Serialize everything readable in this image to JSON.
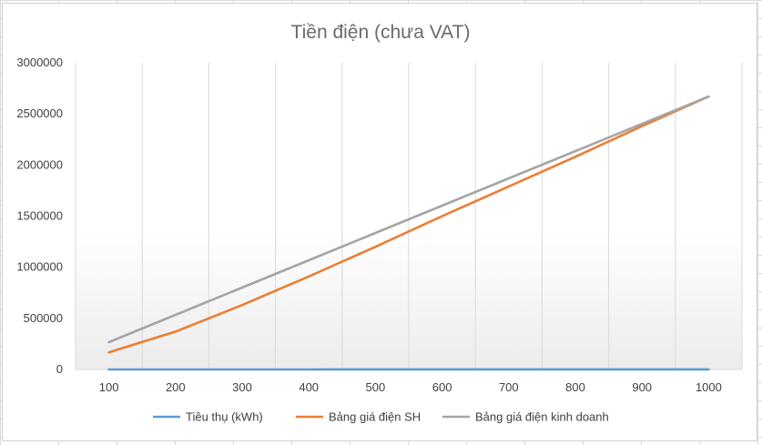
{
  "chart_data": {
    "type": "line",
    "title": "Tiền điện (chưa VAT)",
    "xlabel": "",
    "ylabel": "",
    "categories": [
      "100",
      "200",
      "300",
      "400",
      "500",
      "600",
      "700",
      "800",
      "900",
      "1000"
    ],
    "ylim": [
      0,
      3000000
    ],
    "yticks": [
      "0",
      "500000",
      "1000000",
      "1500000",
      "2000000",
      "2500000",
      "3000000"
    ],
    "grid": "vertical",
    "legend_position": "bottom",
    "series": [
      {
        "name": "Tiêu thụ (kWh)",
        "color": "#5b9bd5",
        "values": [
          100,
          200,
          300,
          400,
          500,
          600,
          700,
          800,
          900,
          1000
        ]
      },
      {
        "name": "Bảng giá điện SH",
        "color": "#ed7d31",
        "values": [
          167000,
          370000,
          630000,
          910000,
          1200000,
          1500000,
          1790000,
          2080000,
          2380000,
          2670000
        ]
      },
      {
        "name": "Bảng giá điện kinh doanh",
        "color": "#a5a5a5",
        "values": [
          267000,
          534000,
          801000,
          1068000,
          1335000,
          1602000,
          1869000,
          2136000,
          2403000,
          2670000
        ]
      }
    ]
  }
}
